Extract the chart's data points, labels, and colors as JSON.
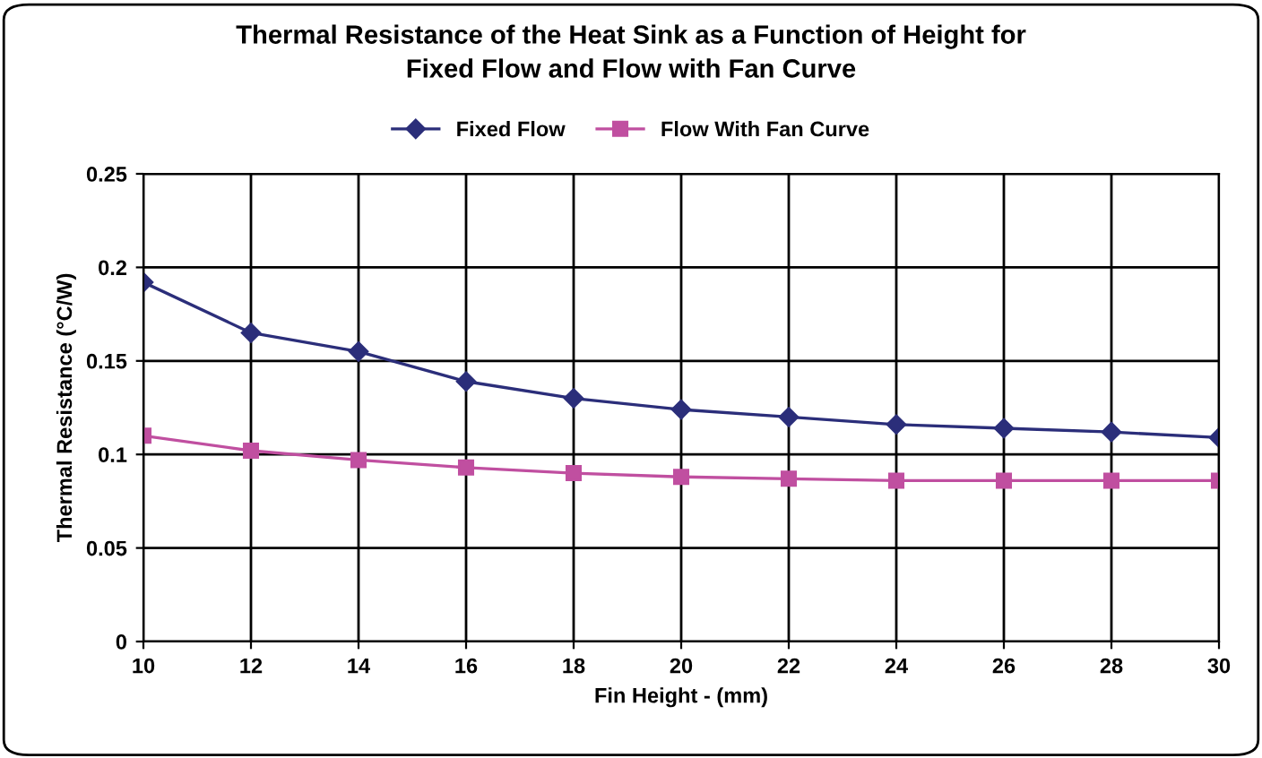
{
  "chart_data": {
    "type": "line",
    "title": "Thermal Resistance of the Heat Sink as a Function of Height for\nFixed Flow and Flow with Fan Curve",
    "xlabel": "Fin Height - (mm)",
    "ylabel": "Thermal Resistance (°C/W)",
    "x": [
      10,
      12,
      14,
      16,
      18,
      20,
      22,
      24,
      26,
      28,
      30
    ],
    "series": [
      {
        "name": "Fixed Flow",
        "color": "#2b2e7a",
        "marker": "diamond",
        "values": [
          0.192,
          0.165,
          0.155,
          0.139,
          0.13,
          0.124,
          0.12,
          0.116,
          0.114,
          0.112,
          0.109
        ]
      },
      {
        "name": "Flow With Fan Curve",
        "color": "#c04fa0",
        "marker": "square",
        "values": [
          0.11,
          0.102,
          0.097,
          0.093,
          0.09,
          0.088,
          0.087,
          0.086,
          0.086,
          0.086,
          0.086
        ]
      }
    ],
    "xlim": [
      10,
      30
    ],
    "xticks": [
      10,
      12,
      14,
      16,
      18,
      20,
      22,
      24,
      26,
      28,
      30
    ],
    "ylim": [
      0,
      0.25
    ],
    "yticks": [
      0,
      0.05,
      0.1,
      0.15,
      0.2,
      0.25
    ],
    "grid": true,
    "legend": "top",
    "line_style": "solid"
  }
}
